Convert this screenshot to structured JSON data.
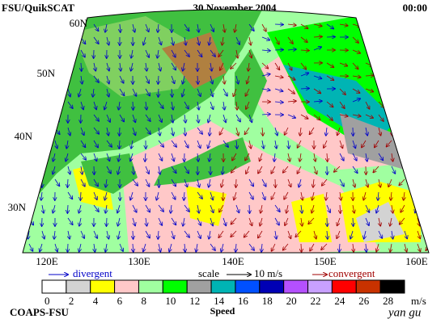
{
  "header": {
    "source": "FSU/QuikSCAT",
    "date": "30 November 2004",
    "time": "00:00"
  },
  "map": {
    "lat_labels": [
      "60N",
      "50N",
      "40N",
      "30N"
    ],
    "lon_labels": [
      "120E",
      "130E",
      "140E",
      "150E",
      "160E"
    ]
  },
  "legend": {
    "divergent": "divergent",
    "scale": "scale",
    "scale_value": "10 m/s",
    "convergent": "convergent"
  },
  "colorbar": {
    "ticks": [
      0,
      2,
      4,
      6,
      8,
      10,
      12,
      14,
      16,
      18,
      20,
      22,
      24,
      26,
      28
    ],
    "unit": "m/s",
    "label": "Speed",
    "colors": [
      "#ffffff",
      "#d3d3d3",
      "#ffff00",
      "#ffc8c8",
      "#a0ffa0",
      "#00ff00",
      "#a0a0a0",
      "#00b4b4",
      "#0050ff",
      "#0000b4",
      "#b450ff",
      "#c8a0ff",
      "#ff0000",
      "#c83200",
      "#000000"
    ]
  },
  "footer": {
    "org": "COAPS-FSU",
    "author": "yan gu"
  }
}
